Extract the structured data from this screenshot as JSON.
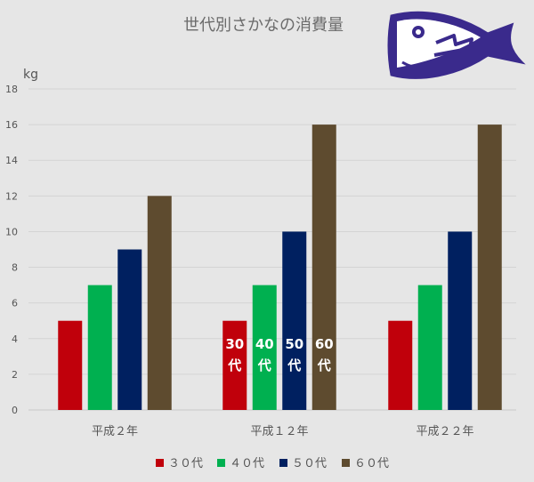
{
  "chart_data": {
    "type": "bar",
    "title": "世代別さかなの消費量",
    "ylabel": "kg",
    "ylim": [
      0,
      18
    ],
    "ytick_step": 2,
    "grid": true,
    "legend_position": "bottom",
    "categories": [
      "平成２年",
      "平成１２年",
      "平成２２年"
    ],
    "series": [
      {
        "name": "３０代",
        "color": "#c0000b",
        "values": [
          5,
          5,
          5
        ]
      },
      {
        "name": "４０代",
        "color": "#00b050",
        "values": [
          7,
          7,
          7
        ]
      },
      {
        "name": "５０代",
        "color": "#002060",
        "values": [
          9,
          10,
          10
        ]
      },
      {
        "name": "６０代",
        "color": "#5e4b2f",
        "values": [
          12,
          16,
          16
        ]
      }
    ],
    "bar_labels": [
      {
        "category": 1,
        "series": 0,
        "lines": [
          "30",
          "代"
        ]
      },
      {
        "category": 1,
        "series": 1,
        "lines": [
          "40",
          "代"
        ]
      },
      {
        "category": 1,
        "series": 2,
        "lines": [
          "50",
          "代"
        ]
      },
      {
        "category": 1,
        "series": 3,
        "lines": [
          "60",
          "代"
        ]
      }
    ]
  },
  "colors": {
    "background": "#e6e6e6",
    "grid": "#d4d4d4",
    "logo": "#3a2a8c"
  },
  "logo": {
    "icon": "fish-icon"
  }
}
